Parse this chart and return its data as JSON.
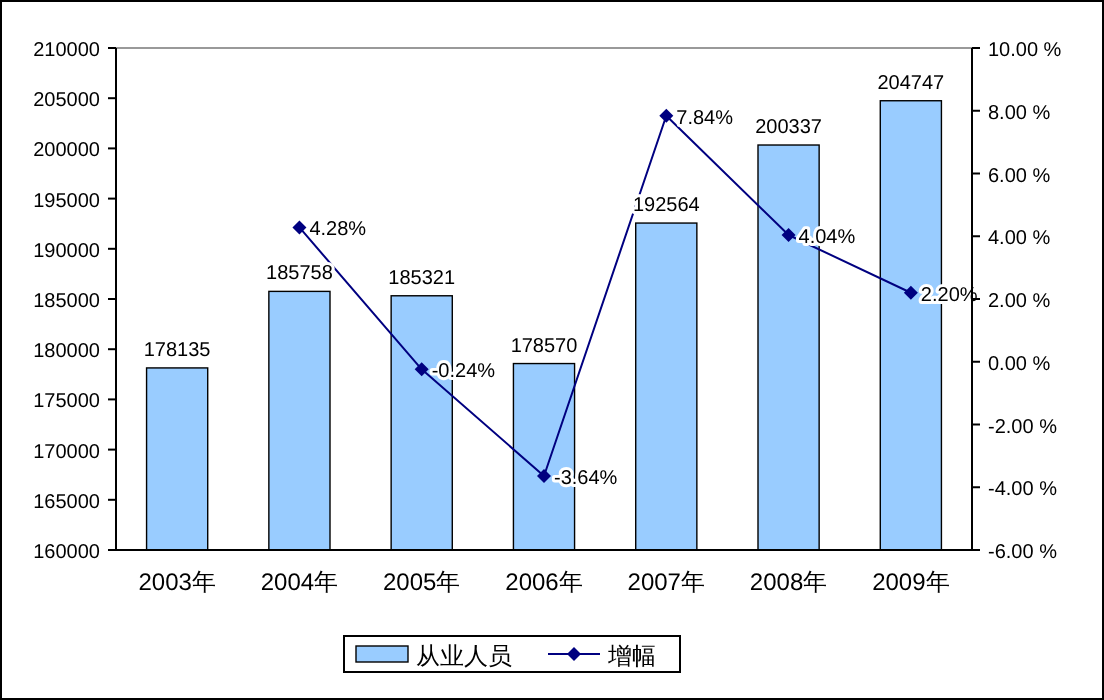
{
  "chart_data": {
    "type": "bar",
    "categories": [
      "2003年",
      "2004年",
      "2005年",
      "2006年",
      "2007年",
      "2008年",
      "2009年"
    ],
    "series": [
      {
        "name": "从业人员",
        "color": "#99ccff",
        "values": [
          178135,
          185758,
          185321,
          178570,
          192564,
          200337,
          204747
        ],
        "value_labels": [
          "178135",
          "185758",
          "185321",
          "178570",
          "192564",
          "200337",
          "204747"
        ]
      },
      {
        "name": "增幅",
        "type": "line",
        "axis": "y2",
        "color": "#000080",
        "marker": "diamond",
        "values": [
          null,
          4.28,
          -0.24,
          -3.64,
          7.84,
          4.04,
          2.2
        ],
        "value_labels": [
          null,
          "4.28%",
          "-0.24%",
          "-3.64%",
          "7.84%",
          "4.04%",
          "2.20%"
        ]
      }
    ],
    "ylim": [
      160000,
      210000
    ],
    "yticks": [
      160000,
      165000,
      170000,
      175000,
      180000,
      185000,
      190000,
      195000,
      200000,
      205000,
      210000
    ],
    "y2lim": [
      -6,
      10
    ],
    "y2ticks": [
      {
        "value": -6,
        "label": "-6.00 %"
      },
      {
        "value": -4,
        "label": "-4.00 %"
      },
      {
        "value": -2,
        "label": "-2.00 %"
      },
      {
        "value": 0,
        "label": "0.00 %"
      },
      {
        "value": 2,
        "label": "2.00 %"
      },
      {
        "value": 4,
        "label": "4.00 %"
      },
      {
        "value": 6,
        "label": "6.00 %"
      },
      {
        "value": 8,
        "label": "8.00 %"
      },
      {
        "value": 10,
        "label": "10.00 %"
      }
    ],
    "grid": false,
    "legend": "bottom"
  }
}
